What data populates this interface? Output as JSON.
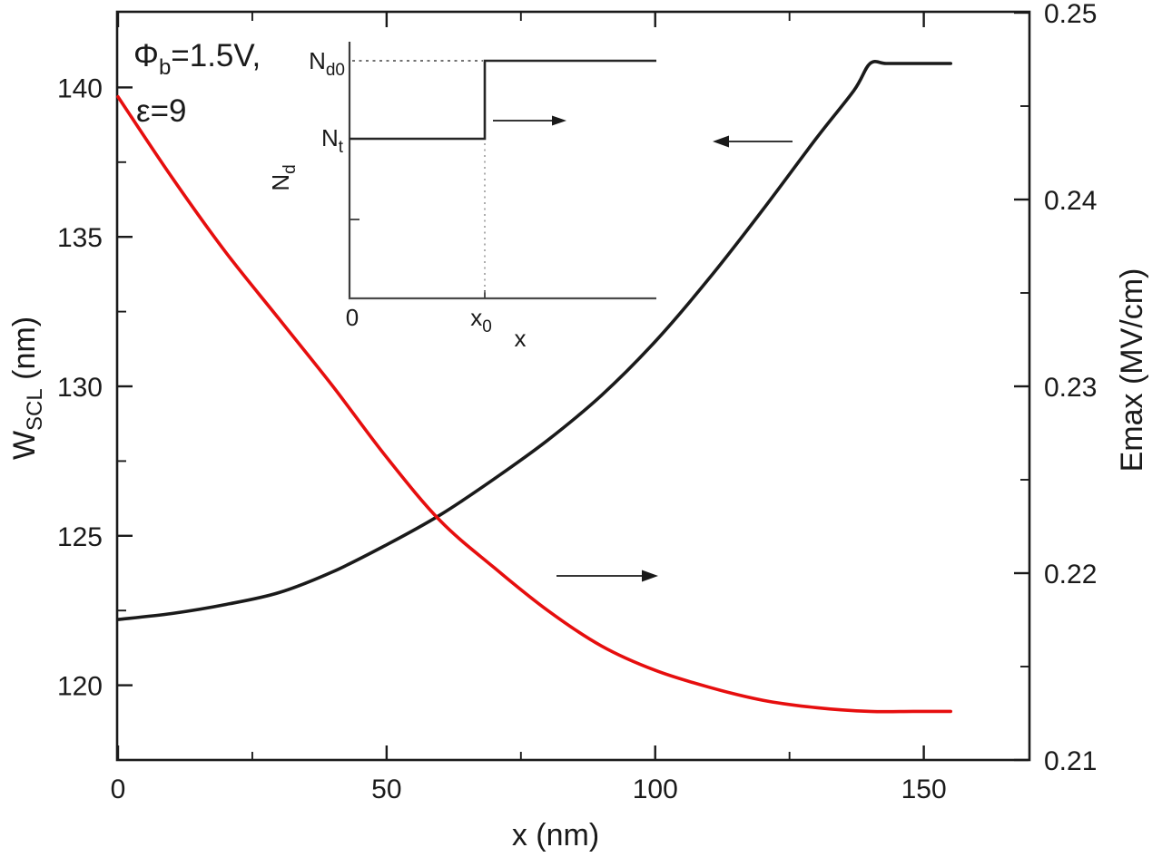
{
  "figure": {
    "annotation": {
      "phi_base": "Φ",
      "phi_sub": "b",
      "phi_rest": "=1.5V,",
      "epsilon_line": "ε=9"
    },
    "arrows": [
      {
        "name": "black-curve-to-left-axis",
        "direction": "left"
      },
      {
        "name": "red-curve-to-right-axis",
        "direction": "right"
      }
    ]
  },
  "inset": {
    "ylabel_base": "N",
    "ylabel_sub": "d",
    "level_high_base": "N",
    "level_high_sub": "d0",
    "level_low_base": "N",
    "level_low_sub": "t",
    "origin_label": "0",
    "step_x_base": "x",
    "step_x_sub": "0",
    "xlabel": "x",
    "description": "Step doping profile: Nd equals Nt for x < x0 and jumps to Nd0 for x > x0; arrow indicates step moving right"
  },
  "chart_data": {
    "type": "line",
    "title": "",
    "xlabel": "x (nm)",
    "xlim": [
      0,
      169.5
    ],
    "x_ticks": [
      0,
      50,
      100,
      150
    ],
    "x_tick_labels": [
      "0",
      "50",
      "100",
      "150"
    ],
    "x_minor_ticks": [
      25,
      75,
      125
    ],
    "grid": false,
    "legend": "none",
    "left_axis": {
      "label": "W_SCL (nm)",
      "label_base": "W",
      "label_sub": "SCL",
      "label_unit": " (nm)",
      "lim": [
        117.5,
        142.5
      ],
      "ticks": [
        120,
        125,
        130,
        135,
        140
      ],
      "tick_labels": [
        "120",
        "125",
        "130",
        "135",
        "140"
      ],
      "minor_ticks": [
        122.5,
        127.5,
        132.5,
        137.5
      ]
    },
    "right_axis": {
      "label": "Emax (MV/cm)",
      "lim": [
        0.21,
        0.25
      ],
      "ticks": [
        0.21,
        0.22,
        0.23,
        0.24,
        0.25
      ],
      "tick_labels": [
        "0.21",
        "0.22",
        "0.23",
        "0.24",
        "0.25"
      ],
      "minor_ticks": [
        0.215,
        0.225,
        0.235,
        0.245
      ]
    },
    "series": [
      {
        "name": "W_SCL",
        "axis": "left",
        "color": "#1a1a1a",
        "x": [
          0,
          10,
          20,
          30,
          40,
          50,
          60,
          70,
          80,
          90,
          100,
          110,
          120,
          130,
          137,
          140,
          143,
          148,
          155
        ],
        "y": [
          122.2,
          122.4,
          122.7,
          123.1,
          123.8,
          124.7,
          125.7,
          126.9,
          128.2,
          129.7,
          131.5,
          133.6,
          135.9,
          138.3,
          139.9,
          140.8,
          140.8,
          140.8,
          140.8
        ]
      },
      {
        "name": "Emax",
        "axis": "right",
        "color": "#e60e0e",
        "x": [
          0,
          10,
          20,
          30,
          40,
          50,
          60,
          70,
          80,
          90,
          100,
          110,
          120,
          130,
          140,
          148,
          155
        ],
        "y": [
          0.2455,
          0.2412,
          0.2372,
          0.2336,
          0.23,
          0.2262,
          0.2228,
          0.2203,
          0.218,
          0.2161,
          0.2148,
          0.2139,
          0.2132,
          0.2128,
          0.2126,
          0.2126,
          0.2126
        ]
      }
    ]
  }
}
